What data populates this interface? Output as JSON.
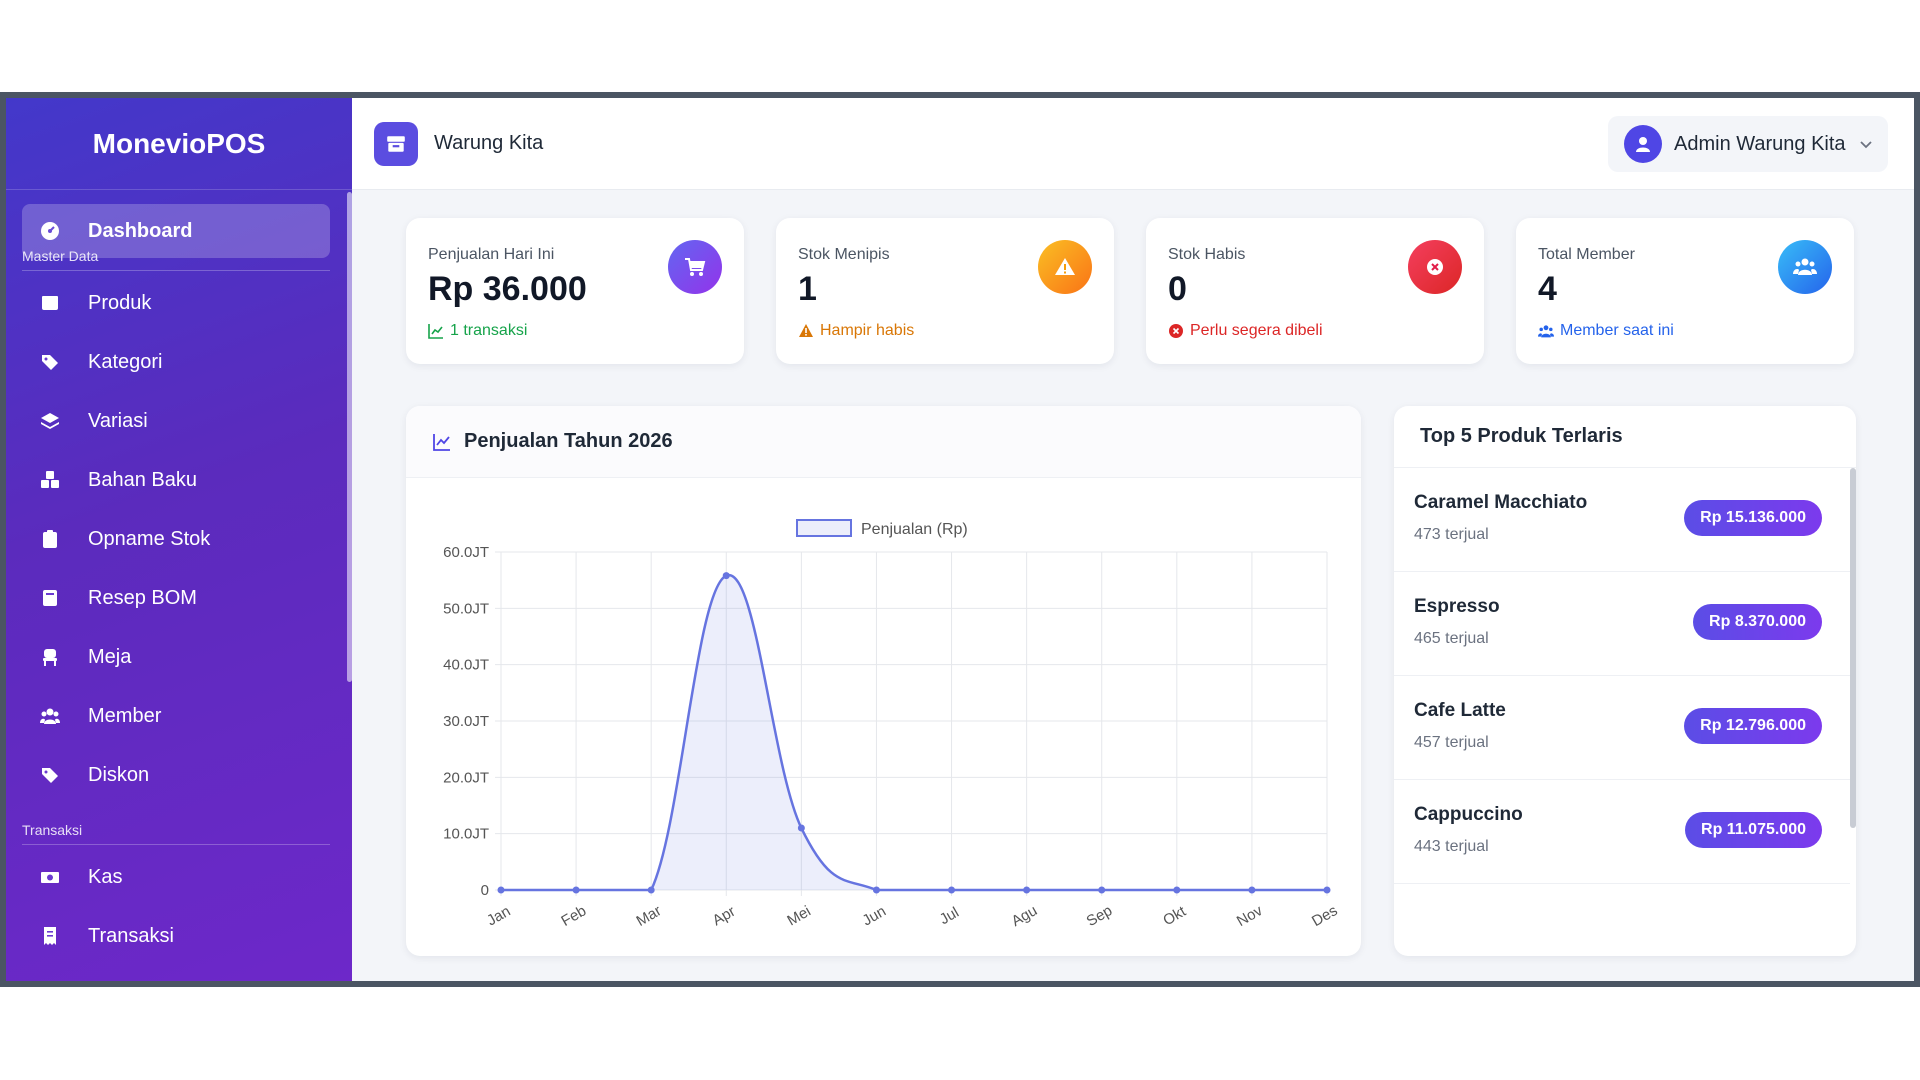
{
  "brand": "MonevioPOS",
  "sidebar": {
    "active": {
      "label": "Dashboard"
    },
    "sections": {
      "master": "Master Data",
      "transaksi": "Transaksi"
    },
    "master_items": [
      {
        "label": "Produk",
        "icon": "box-icon"
      },
      {
        "label": "Kategori",
        "icon": "tags-icon"
      },
      {
        "label": "Variasi",
        "icon": "layers-icon"
      },
      {
        "label": "Bahan Baku",
        "icon": "cubes-icon"
      },
      {
        "label": "Opname Stok",
        "icon": "clipboard-icon"
      },
      {
        "label": "Resep BOM",
        "icon": "book-icon"
      },
      {
        "label": "Meja",
        "icon": "chair-icon"
      },
      {
        "label": "Member",
        "icon": "users-icon"
      },
      {
        "label": "Diskon",
        "icon": "tag-icon"
      }
    ],
    "transaksi_items": [
      {
        "label": "Kas",
        "icon": "money-icon"
      },
      {
        "label": "Transaksi",
        "icon": "receipt-icon"
      }
    ]
  },
  "header": {
    "store_name": "Warung Kita",
    "user_name": "Admin Warung Kita"
  },
  "stats": [
    {
      "label": "Penjualan Hari Ini",
      "value": "Rp 36.000",
      "sub": "1 transaksi",
      "color": "#16a34a",
      "badge_color": "#7c3aed"
    },
    {
      "label": "Stok Menipis",
      "value": "1",
      "sub": "Hampir habis",
      "color": "#d97706",
      "badge_color": "#f59e0b"
    },
    {
      "label": "Stok Habis",
      "value": "0",
      "sub": "Perlu segera dibeli",
      "color": "#dc2626",
      "badge_color": "#e11d48"
    },
    {
      "label": "Total Member",
      "value": "4",
      "sub": "Member saat ini",
      "color": "#2563eb",
      "badge_color": "#0ea5e9"
    }
  ],
  "chart_card": {
    "title": "Penjualan Tahun 2026"
  },
  "chart_data": {
    "type": "line",
    "title": "Penjualan Tahun 2026",
    "x": [
      "Jan",
      "Feb",
      "Mar",
      "Apr",
      "Mei",
      "Jun",
      "Jul",
      "Agu",
      "Sep",
      "Okt",
      "Nov",
      "Des"
    ],
    "series": [
      {
        "name": "Penjualan (Rp)",
        "values": [
          0,
          0,
          0,
          55800000,
          11000000,
          0,
          0,
          0,
          0,
          0,
          0,
          0
        ],
        "color": "#6674e0"
      }
    ],
    "yticks": [
      "0",
      "10.0JT",
      "20.0JT",
      "30.0JT",
      "40.0JT",
      "50.0JT",
      "60.0JT"
    ],
    "ylim": [
      0,
      60000000
    ],
    "grid": true,
    "legend": "top-center",
    "fill": true
  },
  "top_products": {
    "title": "Top 5 Produk Terlaris",
    "items": [
      {
        "name": "Caramel Macchiato",
        "sold": "473 terjual",
        "price": "Rp 15.136.000"
      },
      {
        "name": "Espresso",
        "sold": "465 terjual",
        "price": "Rp 8.370.000"
      },
      {
        "name": "Cafe Latte",
        "sold": "457 terjual",
        "price": "Rp 12.796.000"
      },
      {
        "name": "Cappuccino",
        "sold": "443 terjual",
        "price": "Rp 11.075.000"
      }
    ]
  }
}
